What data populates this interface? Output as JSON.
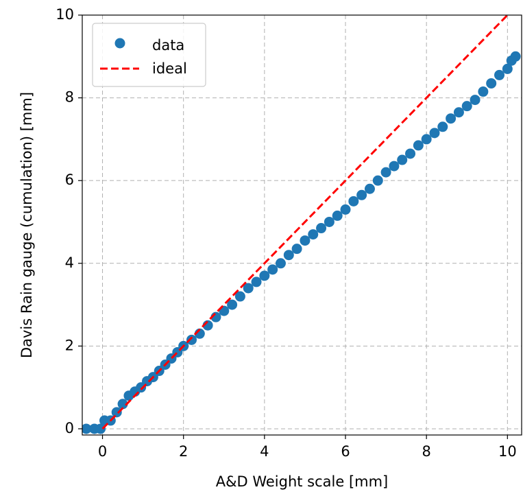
{
  "chart_data": {
    "type": "scatter",
    "xlabel": "A&D Weight scale [mm]",
    "ylabel": "Davis Rain gauge (cumulation) [mm]",
    "xlim": [
      -0.5,
      10.35
    ],
    "ylim": [
      -0.15,
      10.0
    ],
    "xticks": [
      0,
      2,
      4,
      6,
      8,
      10
    ],
    "yticks": [
      0,
      2,
      4,
      6,
      8,
      10
    ],
    "grid": true,
    "legend_position": "top-left",
    "series": [
      {
        "name": "data",
        "kind": "scatter",
        "color": "#1f77b4",
        "x": [
          -0.4,
          -0.2,
          -0.05,
          0.05,
          0.2,
          0.35,
          0.5,
          0.65,
          0.8,
          0.95,
          1.1,
          1.25,
          1.4,
          1.55,
          1.7,
          1.85,
          2.0,
          2.2,
          2.4,
          2.6,
          2.8,
          3.0,
          3.2,
          3.4,
          3.6,
          3.8,
          4.0,
          4.2,
          4.4,
          4.6,
          4.8,
          5.0,
          5.2,
          5.4,
          5.6,
          5.8,
          6.0,
          6.2,
          6.4,
          6.6,
          6.8,
          7.0,
          7.2,
          7.4,
          7.6,
          7.8,
          8.0,
          8.2,
          8.4,
          8.6,
          8.8,
          9.0,
          9.2,
          9.4,
          9.6,
          9.8,
          10.0,
          10.1,
          10.2
        ],
        "y": [
          0.0,
          0.0,
          0.0,
          0.2,
          0.2,
          0.4,
          0.6,
          0.8,
          0.9,
          1.0,
          1.15,
          1.25,
          1.4,
          1.55,
          1.7,
          1.85,
          2.0,
          2.15,
          2.3,
          2.5,
          2.7,
          2.85,
          3.0,
          3.2,
          3.4,
          3.55,
          3.7,
          3.85,
          4.0,
          4.2,
          4.35,
          4.55,
          4.7,
          4.85,
          5.0,
          5.15,
          5.3,
          5.5,
          5.65,
          5.8,
          6.0,
          6.2,
          6.35,
          6.5,
          6.65,
          6.85,
          7.0,
          7.15,
          7.3,
          7.5,
          7.65,
          7.8,
          7.95,
          8.15,
          8.35,
          8.55,
          8.7,
          8.9,
          9.0
        ]
      },
      {
        "name": "ideal",
        "kind": "line",
        "color": "#ff0000",
        "dash": "dashed",
        "x": [
          0,
          10.35
        ],
        "y": [
          0,
          10.35
        ]
      }
    ]
  }
}
